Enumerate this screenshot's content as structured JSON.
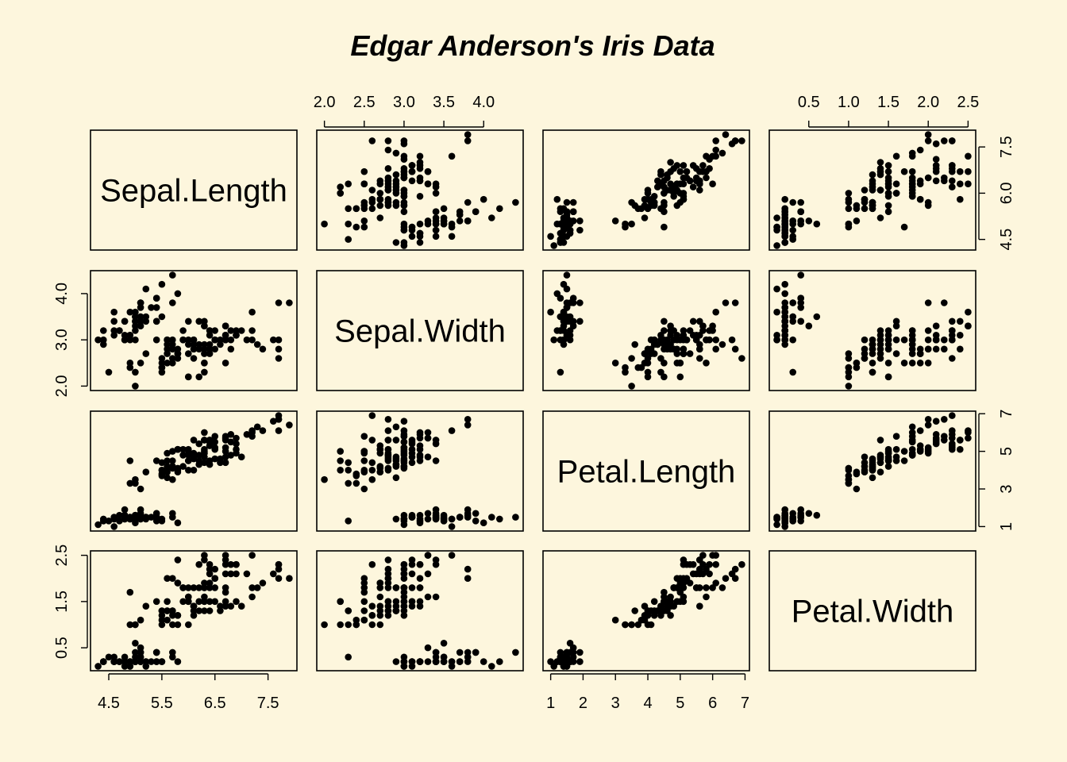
{
  "chart_data": {
    "type": "scatter",
    "title": "Edgar Anderson's Iris Data",
    "background": "#fdf6dd",
    "point_color": "#000000",
    "variables": [
      "Sepal.Length",
      "Sepal.Width",
      "Petal.Length",
      "Petal.Width"
    ],
    "axis_ranges": {
      "Sepal.Length": [
        4.3,
        7.9
      ],
      "Sepal.Width": [
        2.0,
        4.4
      ],
      "Petal.Length": [
        1.0,
        6.9
      ],
      "Petal.Width": [
        0.1,
        2.5
      ]
    },
    "ticks": {
      "Sepal.Length": [
        "4.5",
        "5.5",
        "6.5",
        "7.5"
      ],
      "Sepal.Width": [
        "2.0",
        "2.5",
        "3.0",
        "3.5",
        "4.0"
      ],
      "Petal.Length": [
        "1",
        "2",
        "3",
        "4",
        "5",
        "6",
        "7"
      ],
      "Petal.Width": [
        "0.5",
        "1.0",
        "1.5",
        "2.0",
        "2.5"
      ]
    },
    "tick_labels": {
      "Sepal.Length": {
        "bottom": [
          "4.5",
          "5.5",
          "6.5",
          "7.5"
        ],
        "right": [
          "4.5",
          "6.0",
          "7.5"
        ]
      },
      "Sepal.Width": {
        "top": [
          "2.0",
          "2.5",
          "3.0",
          "3.5",
          "4.0"
        ],
        "left": [
          "2.0",
          "3.0",
          "4.0"
        ]
      },
      "Petal.Length": {
        "bottom": [
          "1",
          "2",
          "3",
          "4",
          "5",
          "6",
          "7"
        ],
        "right": [
          "1",
          "3",
          "5",
          "7"
        ]
      },
      "Petal.Width": {
        "top": [
          "0.5",
          "1.0",
          "1.5",
          "2.0",
          "2.5"
        ],
        "left": [
          "0.5",
          "1.5",
          "2.5"
        ]
      }
    },
    "grid": false,
    "legend": "none",
    "observations": [
      [
        5.1,
        3.5,
        1.4,
        0.2
      ],
      [
        4.9,
        3.0,
        1.4,
        0.2
      ],
      [
        4.7,
        3.2,
        1.3,
        0.2
      ],
      [
        4.6,
        3.1,
        1.5,
        0.2
      ],
      [
        5.0,
        3.6,
        1.4,
        0.2
      ],
      [
        5.4,
        3.9,
        1.7,
        0.4
      ],
      [
        4.6,
        3.4,
        1.4,
        0.3
      ],
      [
        5.0,
        3.4,
        1.5,
        0.2
      ],
      [
        4.4,
        2.9,
        1.4,
        0.2
      ],
      [
        4.9,
        3.1,
        1.5,
        0.1
      ],
      [
        5.4,
        3.7,
        1.5,
        0.2
      ],
      [
        4.8,
        3.4,
        1.6,
        0.2
      ],
      [
        4.8,
        3.0,
        1.4,
        0.1
      ],
      [
        4.3,
        3.0,
        1.1,
        0.1
      ],
      [
        5.8,
        4.0,
        1.2,
        0.2
      ],
      [
        5.7,
        4.4,
        1.5,
        0.4
      ],
      [
        5.4,
        3.9,
        1.3,
        0.4
      ],
      [
        5.1,
        3.5,
        1.4,
        0.3
      ],
      [
        5.7,
        3.8,
        1.7,
        0.3
      ],
      [
        5.1,
        3.8,
        1.5,
        0.3
      ],
      [
        5.4,
        3.4,
        1.7,
        0.2
      ],
      [
        5.1,
        3.7,
        1.5,
        0.4
      ],
      [
        4.6,
        3.6,
        1.0,
        0.2
      ],
      [
        5.1,
        3.3,
        1.7,
        0.5
      ],
      [
        4.8,
        3.4,
        1.9,
        0.2
      ],
      [
        5.0,
        3.0,
        1.6,
        0.2
      ],
      [
        5.0,
        3.4,
        1.6,
        0.4
      ],
      [
        5.2,
        3.5,
        1.5,
        0.2
      ],
      [
        5.2,
        3.4,
        1.4,
        0.2
      ],
      [
        4.7,
        3.2,
        1.6,
        0.2
      ],
      [
        4.8,
        3.1,
        1.6,
        0.2
      ],
      [
        5.4,
        3.4,
        1.5,
        0.4
      ],
      [
        5.2,
        4.1,
        1.5,
        0.1
      ],
      [
        5.5,
        4.2,
        1.4,
        0.2
      ],
      [
        4.9,
        3.1,
        1.5,
        0.2
      ],
      [
        5.0,
        3.2,
        1.2,
        0.2
      ],
      [
        5.5,
        3.5,
        1.3,
        0.2
      ],
      [
        4.9,
        3.6,
        1.4,
        0.1
      ],
      [
        4.4,
        3.0,
        1.3,
        0.2
      ],
      [
        5.1,
        3.4,
        1.5,
        0.2
      ],
      [
        5.0,
        3.5,
        1.3,
        0.3
      ],
      [
        4.5,
        2.3,
        1.3,
        0.3
      ],
      [
        4.4,
        3.2,
        1.3,
        0.2
      ],
      [
        5.0,
        3.5,
        1.6,
        0.6
      ],
      [
        5.1,
        3.8,
        1.9,
        0.4
      ],
      [
        4.8,
        3.0,
        1.4,
        0.3
      ],
      [
        5.1,
        3.8,
        1.6,
        0.2
      ],
      [
        4.6,
        3.2,
        1.4,
        0.2
      ],
      [
        5.3,
        3.7,
        1.5,
        0.2
      ],
      [
        5.0,
        3.3,
        1.4,
        0.2
      ],
      [
        7.0,
        3.2,
        4.7,
        1.4
      ],
      [
        6.4,
        3.2,
        4.5,
        1.5
      ],
      [
        6.9,
        3.1,
        4.9,
        1.5
      ],
      [
        5.5,
        2.3,
        4.0,
        1.3
      ],
      [
        6.5,
        2.8,
        4.6,
        1.5
      ],
      [
        5.7,
        2.8,
        4.5,
        1.3
      ],
      [
        6.3,
        3.3,
        4.7,
        1.6
      ],
      [
        4.9,
        2.4,
        3.3,
        1.0
      ],
      [
        6.6,
        2.9,
        4.6,
        1.3
      ],
      [
        5.2,
        2.7,
        3.9,
        1.4
      ],
      [
        5.0,
        2.0,
        3.5,
        1.0
      ],
      [
        5.9,
        3.0,
        4.2,
        1.5
      ],
      [
        6.0,
        2.2,
        4.0,
        1.0
      ],
      [
        6.1,
        2.9,
        4.7,
        1.4
      ],
      [
        5.6,
        2.9,
        3.6,
        1.3
      ],
      [
        6.7,
        3.1,
        4.4,
        1.4
      ],
      [
        5.6,
        3.0,
        4.5,
        1.5
      ],
      [
        5.8,
        2.7,
        4.1,
        1.0
      ],
      [
        6.2,
        2.2,
        4.5,
        1.5
      ],
      [
        5.6,
        2.5,
        3.9,
        1.1
      ],
      [
        5.9,
        3.2,
        4.8,
        1.8
      ],
      [
        6.1,
        2.8,
        4.0,
        1.3
      ],
      [
        6.3,
        2.5,
        4.9,
        1.5
      ],
      [
        6.1,
        2.8,
        4.7,
        1.2
      ],
      [
        6.4,
        2.9,
        4.3,
        1.3
      ],
      [
        6.6,
        3.0,
        4.4,
        1.4
      ],
      [
        6.8,
        2.8,
        4.8,
        1.4
      ],
      [
        6.7,
        3.0,
        5.0,
        1.7
      ],
      [
        6.0,
        2.9,
        4.5,
        1.5
      ],
      [
        5.7,
        2.6,
        3.5,
        1.0
      ],
      [
        5.5,
        2.4,
        3.8,
        1.1
      ],
      [
        5.5,
        2.4,
        3.7,
        1.0
      ],
      [
        5.8,
        2.7,
        3.9,
        1.2
      ],
      [
        6.0,
        2.7,
        5.1,
        1.6
      ],
      [
        5.4,
        3.0,
        4.5,
        1.5
      ],
      [
        6.0,
        3.4,
        4.5,
        1.6
      ],
      [
        6.7,
        3.1,
        4.7,
        1.5
      ],
      [
        6.3,
        2.3,
        4.4,
        1.3
      ],
      [
        5.6,
        3.0,
        4.1,
        1.3
      ],
      [
        5.5,
        2.5,
        4.0,
        1.3
      ],
      [
        5.5,
        2.6,
        4.4,
        1.2
      ],
      [
        6.1,
        3.0,
        4.6,
        1.4
      ],
      [
        5.8,
        2.6,
        4.0,
        1.2
      ],
      [
        5.0,
        2.3,
        3.3,
        1.0
      ],
      [
        5.6,
        2.7,
        4.2,
        1.3
      ],
      [
        5.7,
        3.0,
        4.2,
        1.2
      ],
      [
        5.7,
        2.9,
        4.2,
        1.3
      ],
      [
        6.2,
        2.9,
        4.3,
        1.3
      ],
      [
        5.1,
        2.5,
        3.0,
        1.1
      ],
      [
        5.7,
        2.8,
        4.1,
        1.3
      ],
      [
        6.3,
        3.3,
        6.0,
        2.5
      ],
      [
        5.8,
        2.7,
        5.1,
        1.9
      ],
      [
        7.1,
        3.0,
        5.9,
        2.1
      ],
      [
        6.3,
        2.9,
        5.6,
        1.8
      ],
      [
        6.5,
        3.0,
        5.8,
        2.2
      ],
      [
        7.6,
        3.0,
        6.6,
        2.1
      ],
      [
        4.9,
        2.5,
        4.5,
        1.7
      ],
      [
        7.3,
        2.9,
        6.3,
        1.8
      ],
      [
        6.7,
        2.5,
        5.8,
        1.8
      ],
      [
        7.2,
        3.6,
        6.1,
        2.5
      ],
      [
        6.5,
        3.2,
        5.1,
        2.0
      ],
      [
        6.4,
        2.7,
        5.3,
        1.9
      ],
      [
        6.8,
        3.0,
        5.5,
        2.1
      ],
      [
        5.7,
        2.5,
        5.0,
        2.0
      ],
      [
        5.8,
        2.8,
        5.1,
        2.4
      ],
      [
        6.4,
        3.2,
        5.3,
        2.3
      ],
      [
        6.5,
        3.0,
        5.5,
        1.8
      ],
      [
        7.7,
        3.8,
        6.7,
        2.2
      ],
      [
        7.7,
        2.6,
        6.9,
        2.3
      ],
      [
        6.0,
        2.2,
        5.0,
        1.5
      ],
      [
        6.9,
        3.2,
        5.7,
        2.3
      ],
      [
        5.6,
        2.8,
        4.9,
        2.0
      ],
      [
        7.7,
        2.8,
        6.7,
        2.0
      ],
      [
        6.3,
        2.7,
        4.9,
        1.8
      ],
      [
        6.7,
        3.3,
        5.7,
        2.1
      ],
      [
        7.2,
        3.2,
        6.0,
        1.8
      ],
      [
        6.2,
        2.8,
        4.8,
        1.8
      ],
      [
        6.1,
        3.0,
        4.9,
        1.8
      ],
      [
        6.4,
        2.8,
        5.6,
        2.1
      ],
      [
        7.2,
        3.0,
        5.8,
        1.6
      ],
      [
        7.4,
        2.8,
        6.1,
        1.9
      ],
      [
        7.9,
        3.8,
        6.4,
        2.0
      ],
      [
        6.4,
        2.8,
        5.6,
        2.2
      ],
      [
        6.3,
        2.8,
        5.1,
        1.5
      ],
      [
        6.1,
        2.6,
        5.6,
        1.4
      ],
      [
        7.7,
        3.0,
        6.1,
        2.3
      ],
      [
        6.3,
        3.4,
        5.6,
        2.4
      ],
      [
        6.4,
        3.1,
        5.5,
        1.8
      ],
      [
        6.0,
        3.0,
        4.8,
        1.8
      ],
      [
        6.9,
        3.1,
        5.4,
        2.1
      ],
      [
        6.7,
        3.1,
        5.6,
        2.4
      ],
      [
        6.9,
        3.1,
        5.1,
        2.3
      ],
      [
        5.8,
        2.7,
        5.1,
        1.9
      ],
      [
        6.8,
        3.2,
        5.9,
        2.3
      ],
      [
        6.7,
        3.3,
        5.7,
        2.5
      ],
      [
        6.7,
        3.0,
        5.2,
        2.3
      ],
      [
        6.3,
        2.5,
        5.0,
        1.9
      ],
      [
        6.5,
        3.0,
        5.2,
        2.0
      ],
      [
        6.2,
        3.4,
        5.4,
        2.3
      ],
      [
        5.9,
        3.0,
        5.1,
        1.8
      ]
    ]
  }
}
